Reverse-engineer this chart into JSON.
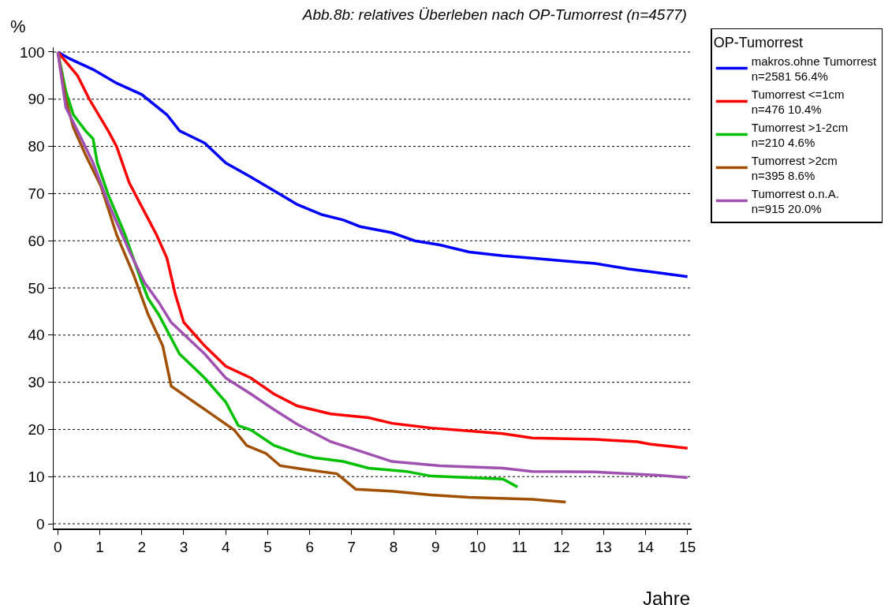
{
  "chart_data": {
    "type": "line",
    "title": "Abb.8b: relatives Überleben nach OP-Tumorrest (n=4577)",
    "xlabel": "Jahre",
    "ylabel": "%",
    "legend_title": "OP-Tumorrest",
    "legend": "right",
    "grid": "y",
    "line_style": "solid",
    "marker": "none",
    "xlim": [
      -0.1,
      15.1
    ],
    "xticks": [
      0,
      1,
      2,
      3,
      4,
      5,
      6,
      7,
      8,
      9,
      10,
      11,
      12,
      13,
      14,
      15
    ],
    "ylim": [
      -1,
      101
    ],
    "yticks": [
      0,
      10,
      20,
      30,
      40,
      50,
      60,
      70,
      80,
      90,
      100
    ],
    "series": [
      {
        "name": "makros.ohne Tumorrest\nn=2581 56.4%",
        "color": "#0000ff",
        "x": [
          0,
          0.3,
          0.84,
          1.4,
          2,
          2.6,
          2.9,
          3.5,
          4,
          4.6,
          5.15,
          5.7,
          6.3,
          6.8,
          7.2,
          7.96,
          8.5,
          9.1,
          9.8,
          10.6,
          11.3,
          12.1,
          12.8,
          13.6,
          14.3,
          15
        ],
        "values": [
          100,
          98.5,
          96.3,
          93.4,
          91,
          86.7,
          83.3,
          80.7,
          76.5,
          73.5,
          70.6,
          67.7,
          65.5,
          64.4,
          63,
          61.7,
          60,
          59.1,
          57.6,
          56.8,
          56.3,
          55.7,
          55.2,
          54,
          53.2,
          52.4
        ]
      },
      {
        "name": "Tumorrest <=1cm\nn=476 10.4%",
        "color": "#ff0000",
        "x": [
          0,
          0.3,
          0.47,
          0.75,
          1.2,
          1.4,
          1.7,
          2,
          2.35,
          2.6,
          2.8,
          3,
          3.5,
          4,
          4.6,
          5.15,
          5.7,
          6.5,
          7.4,
          7.96,
          8.9,
          9.6,
          10.6,
          11.3,
          12.8,
          13.8,
          14.1,
          15
        ],
        "values": [
          100,
          96.8,
          95,
          90,
          83.3,
          80,
          72.3,
          67.2,
          61.3,
          56.3,
          48.6,
          42.7,
          37.7,
          33.4,
          30.9,
          27.5,
          25,
          23.3,
          22.5,
          21.3,
          20.3,
          19.8,
          19.1,
          18.2,
          17.9,
          17.4,
          16.9,
          16
        ]
      },
      {
        "name": "Tumorrest >1-2cm\nn=210 4.6%",
        "color": "#00c000",
        "x": [
          0,
          0.19,
          0.37,
          0.66,
          0.84,
          0.94,
          1.2,
          1.6,
          2,
          2.15,
          2.4,
          2.9,
          3.5,
          4,
          4.3,
          4.6,
          5.15,
          5.7,
          6.1,
          6.8,
          7.4,
          8.3,
          8.9,
          9.8,
          10.6,
          10.95
        ],
        "values": [
          100,
          91.7,
          86.7,
          83.3,
          81.6,
          76.5,
          69.8,
          61.3,
          51.2,
          47.8,
          44.4,
          36,
          30.9,
          25.8,
          20.8,
          19.9,
          16.6,
          14.9,
          14,
          13.2,
          11.8,
          11.1,
          10.1,
          9.8,
          9.5,
          7.8
        ]
      },
      {
        "name": "Tumorrest >2cm\nn=395 8.6%",
        "color": "#a05000",
        "x": [
          0,
          0.19,
          0.37,
          0.66,
          1.03,
          1.4,
          1.8,
          2.15,
          2.5,
          2.7,
          3.1,
          3.65,
          4.2,
          4.5,
          4.96,
          5.3,
          5.9,
          6.65,
          7.1,
          7.96,
          8.9,
          9.8,
          11.3,
          12.1
        ],
        "values": [
          100,
          90,
          84,
          78.2,
          71.5,
          61.3,
          52.9,
          44.4,
          37.7,
          29.2,
          26.7,
          23.3,
          19.9,
          16.6,
          14.9,
          12.3,
          11.5,
          10.6,
          7.3,
          6.9,
          6.1,
          5.6,
          5.2,
          4.6
        ]
      },
      {
        "name": "Tumorrest o.n.A.\nn=915 20.0%",
        "color": "#a050b0",
        "x": [
          0,
          0.19,
          0.47,
          0.84,
          1.2,
          1.7,
          2.06,
          2.4,
          2.7,
          3.5,
          4,
          4.6,
          5.15,
          5.7,
          6.5,
          7.2,
          7.96,
          9.1,
          10.6,
          11.3,
          12.8,
          14.3,
          15
        ],
        "values": [
          100,
          88.3,
          83.3,
          76.5,
          68,
          57.9,
          51.2,
          47,
          42.7,
          36,
          30.9,
          27.5,
          24.2,
          21.1,
          17.4,
          15.4,
          13.2,
          12.3,
          11.8,
          11.1,
          11,
          10.3,
          9.8
        ]
      }
    ]
  }
}
